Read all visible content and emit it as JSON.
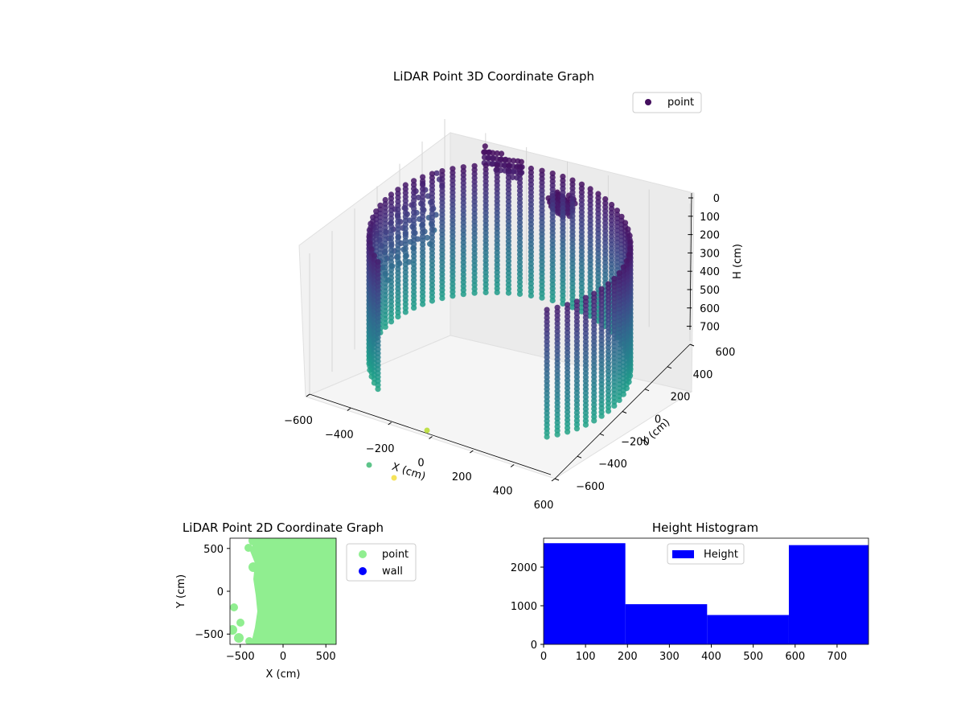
{
  "chart_data": [
    {
      "type": "scatter3d",
      "title": "LiDAR Point 3D Coordinate Graph",
      "xlabel": "X (cm)",
      "ylabel": "Y (cm)",
      "zlabel": "H (cm)",
      "xlim": [
        -600,
        600
      ],
      "ylim": [
        -600,
        600
      ],
      "zlim": [
        0,
        780
      ],
      "z_inverted": true,
      "x_ticks": [
        "−600",
        "−400",
        "−200",
        "0",
        "200",
        "400",
        "600"
      ],
      "y_ticks": [
        "−600",
        "−400",
        "−200",
        "0",
        "200",
        "400",
        "600"
      ],
      "z_ticks": [
        "0",
        "100",
        "200",
        "300",
        "400",
        "500",
        "600",
        "700"
      ],
      "legend": [
        "point"
      ],
      "legend_position": "top-right",
      "colormap": "viridis",
      "grid": true,
      "series": [
        {
          "name": "point",
          "description_shape": "cylindrical wall of radius ~560 cm, heights 0-780 cm, plus clusters",
          "approx_points": [
            {
              "x": -150,
              "y": 560,
              "h": 50
            },
            {
              "x": 100,
              "y": 300,
              "h": 30
            },
            {
              "x": -560,
              "y": 100,
              "h": 300
            },
            {
              "x": 0,
              "y": -560,
              "h": 700
            },
            {
              "x": 400,
              "y": -400,
              "h": 600
            },
            {
              "x": 560,
              "y": 0,
              "h": 400
            }
          ]
        }
      ]
    },
    {
      "type": "scatter",
      "title": "LiDAR Point 2D Coordinate Graph",
      "xlabel": "X (cm)",
      "ylabel": "Y (cm)",
      "xlim": [
        -620,
        620
      ],
      "ylim": [
        -620,
        620
      ],
      "x_ticks": [
        "−500",
        "0",
        "500"
      ],
      "y_ticks": [
        "500",
        "0",
        "−500"
      ],
      "legend": [
        "point",
        "wall"
      ],
      "legend_position": "outside-right",
      "series": [
        {
          "name": "point",
          "color": "#90ee90"
        },
        {
          "name": "wall",
          "color": "#0000ff"
        }
      ]
    },
    {
      "type": "bar",
      "title": "Height Histogram",
      "xlabel": "",
      "ylabel": "",
      "legend": [
        "Height"
      ],
      "legend_position": "top-center",
      "xlim": [
        0,
        775
      ],
      "ylim": [
        0,
        2750
      ],
      "x_ticks": [
        "0",
        "100",
        "200",
        "300",
        "400",
        "500",
        "600",
        "700"
      ],
      "y_ticks": [
        "0",
        "1000",
        "2000"
      ],
      "bins": [
        {
          "start": 0,
          "end": 195,
          "count": 2620
        },
        {
          "start": 195,
          "end": 390,
          "count": 1040
        },
        {
          "start": 390,
          "end": 585,
          "count": 760
        },
        {
          "start": 585,
          "end": 775,
          "count": 2570
        }
      ],
      "series": [
        {
          "name": "Height",
          "color": "#0000ff"
        }
      ]
    }
  ]
}
